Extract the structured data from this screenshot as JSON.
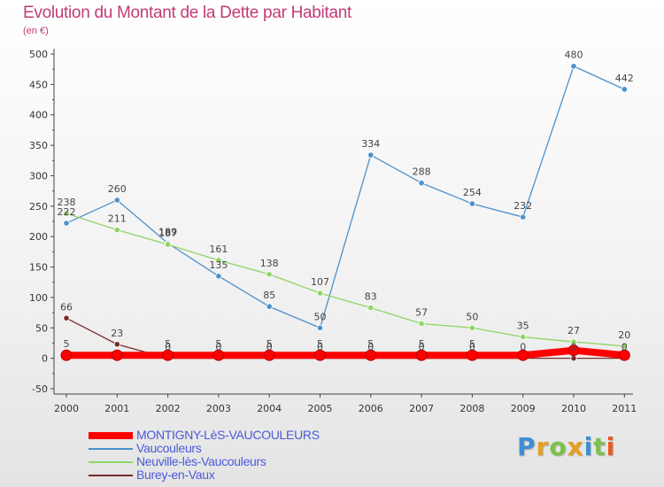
{
  "title": "Evolution du Montant de la Dette par Habitant",
  "subtitle": "(en €)",
  "logo": "Proxiti",
  "chart_data": {
    "type": "line",
    "title": "Evolution du Montant de la Dette par Habitant",
    "subtitle": "(en €)",
    "categories": [
      "2000",
      "2001",
      "2002",
      "2003",
      "2004",
      "2005",
      "2006",
      "2007",
      "2008",
      "2009",
      "2010",
      "2011"
    ],
    "ylim": [
      -50,
      500
    ],
    "yticks": [
      -50,
      0,
      50,
      100,
      150,
      200,
      250,
      300,
      350,
      400,
      450,
      500
    ],
    "grid": false,
    "legend_position": "bottom-left",
    "series": [
      {
        "name": "MONTIGNY-LèS-VAUCOULEURS",
        "color": "#ff0000",
        "values": [
          5,
          5,
          5,
          5,
          5,
          5,
          5,
          5,
          5,
          5,
          13,
          5
        ],
        "labels": [
          "5",
          "",
          "5",
          "5",
          "5",
          "5",
          "5",
          "5",
          "5",
          "",
          "",
          ""
        ]
      },
      {
        "name": "Vaucouleurs",
        "color": "#4d90cc",
        "values": [
          222,
          260,
          189,
          135,
          85,
          50,
          334,
          288,
          254,
          232,
          480,
          442
        ],
        "labels": [
          "222",
          "260",
          "189",
          "135",
          "85",
          "50",
          "334",
          "288",
          "254",
          "232",
          "480",
          "442"
        ]
      },
      {
        "name": "Neuville-lès-Vaucouleurs",
        "color": "#8fd464",
        "values": [
          238,
          211,
          187,
          161,
          138,
          107,
          83,
          57,
          50,
          35,
          27,
          20
        ],
        "labels": [
          "238",
          "211",
          "187",
          "161",
          "138",
          "107",
          "83",
          "57",
          "50",
          "35",
          "27",
          "20"
        ]
      },
      {
        "name": "Burey-en-Vaux",
        "color": "#7a2a2a",
        "values": [
          66,
          23,
          0,
          0,
          0,
          0,
          0,
          0,
          0,
          0,
          0,
          0
        ],
        "labels": [
          "66",
          "23",
          "0",
          "0",
          "0",
          "0",
          "0",
          "0",
          "0",
          "0",
          "0",
          "0"
        ]
      }
    ]
  }
}
